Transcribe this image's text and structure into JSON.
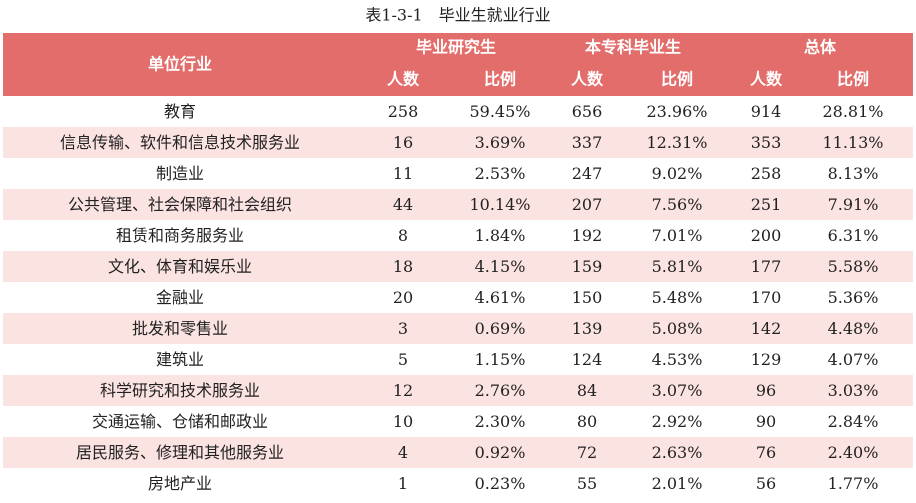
{
  "title": "表1-3-1　毕业生就业行业",
  "table": {
    "header": {
      "first": "单位行业",
      "groups": [
        "毕业研究生",
        "本专科毕业生",
        "总体"
      ],
      "subheaders": [
        "人数",
        "比例",
        "人数",
        "比例",
        "人数",
        "比例"
      ]
    },
    "rows": [
      [
        "教育",
        "258",
        "59.45%",
        "656",
        "23.96%",
        "914",
        "28.81%"
      ],
      [
        "信息传输、软件和信息技术服务业",
        "16",
        "3.69%",
        "337",
        "12.31%",
        "353",
        "11.13%"
      ],
      [
        "制造业",
        "11",
        "2.53%",
        "247",
        "9.02%",
        "258",
        "8.13%"
      ],
      [
        "公共管理、社会保障和社会组织",
        "44",
        "10.14%",
        "207",
        "7.56%",
        "251",
        "7.91%"
      ],
      [
        "租赁和商务服务业",
        "8",
        "1.84%",
        "192",
        "7.01%",
        "200",
        "6.31%"
      ],
      [
        "文化、体育和娱乐业",
        "18",
        "4.15%",
        "159",
        "5.81%",
        "177",
        "5.58%"
      ],
      [
        "金融业",
        "20",
        "4.61%",
        "150",
        "5.48%",
        "170",
        "5.36%"
      ],
      [
        "批发和零售业",
        "3",
        "0.69%",
        "139",
        "5.08%",
        "142",
        "4.48%"
      ],
      [
        "建筑业",
        "5",
        "1.15%",
        "124",
        "4.53%",
        "129",
        "4.07%"
      ],
      [
        "科学研究和技术服务业",
        "12",
        "2.76%",
        "84",
        "3.07%",
        "96",
        "3.03%"
      ],
      [
        "交通运输、仓储和邮政业",
        "10",
        "2.30%",
        "80",
        "2.92%",
        "90",
        "2.84%"
      ],
      [
        "居民服务、修理和其他服务业",
        "4",
        "0.92%",
        "72",
        "2.63%",
        "76",
        "2.40%"
      ],
      [
        "房地产业",
        "1",
        "0.23%",
        "55",
        "2.01%",
        "56",
        "1.77%"
      ]
    ]
  }
}
